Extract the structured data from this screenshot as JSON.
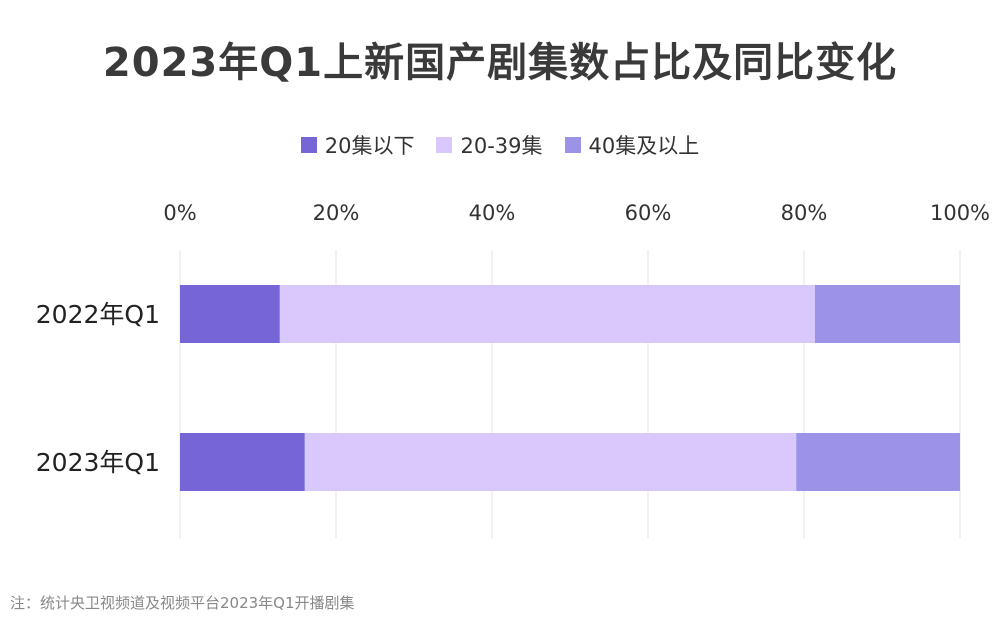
{
  "chart_data": {
    "type": "bar",
    "orientation": "horizontal",
    "stacked": true,
    "title": "2023年Q1上新国产剧集数占比及同比变化",
    "categories": [
      "2022年Q1",
      "2023年Q1"
    ],
    "series": [
      {
        "name": "20集以下",
        "color": "#7565d6",
        "values": [
          12.8,
          16.0
        ]
      },
      {
        "name": "20-39集",
        "color": "#d8c8fc",
        "values": [
          68.6,
          63.0
        ]
      },
      {
        "name": "40集及以上",
        "color": "#9c93e8",
        "values": [
          18.6,
          21.0
        ]
      }
    ],
    "xlim": [
      0,
      100
    ],
    "xticks": [
      "0%",
      "20%",
      "40%",
      "60%",
      "80%",
      "100%"
    ],
    "xtick_values": [
      0,
      20,
      40,
      60,
      80,
      100
    ],
    "grid": true,
    "legend_position": "top"
  },
  "note": "注：统计央卫视频道及视频平台2023年Q1开播剧集"
}
